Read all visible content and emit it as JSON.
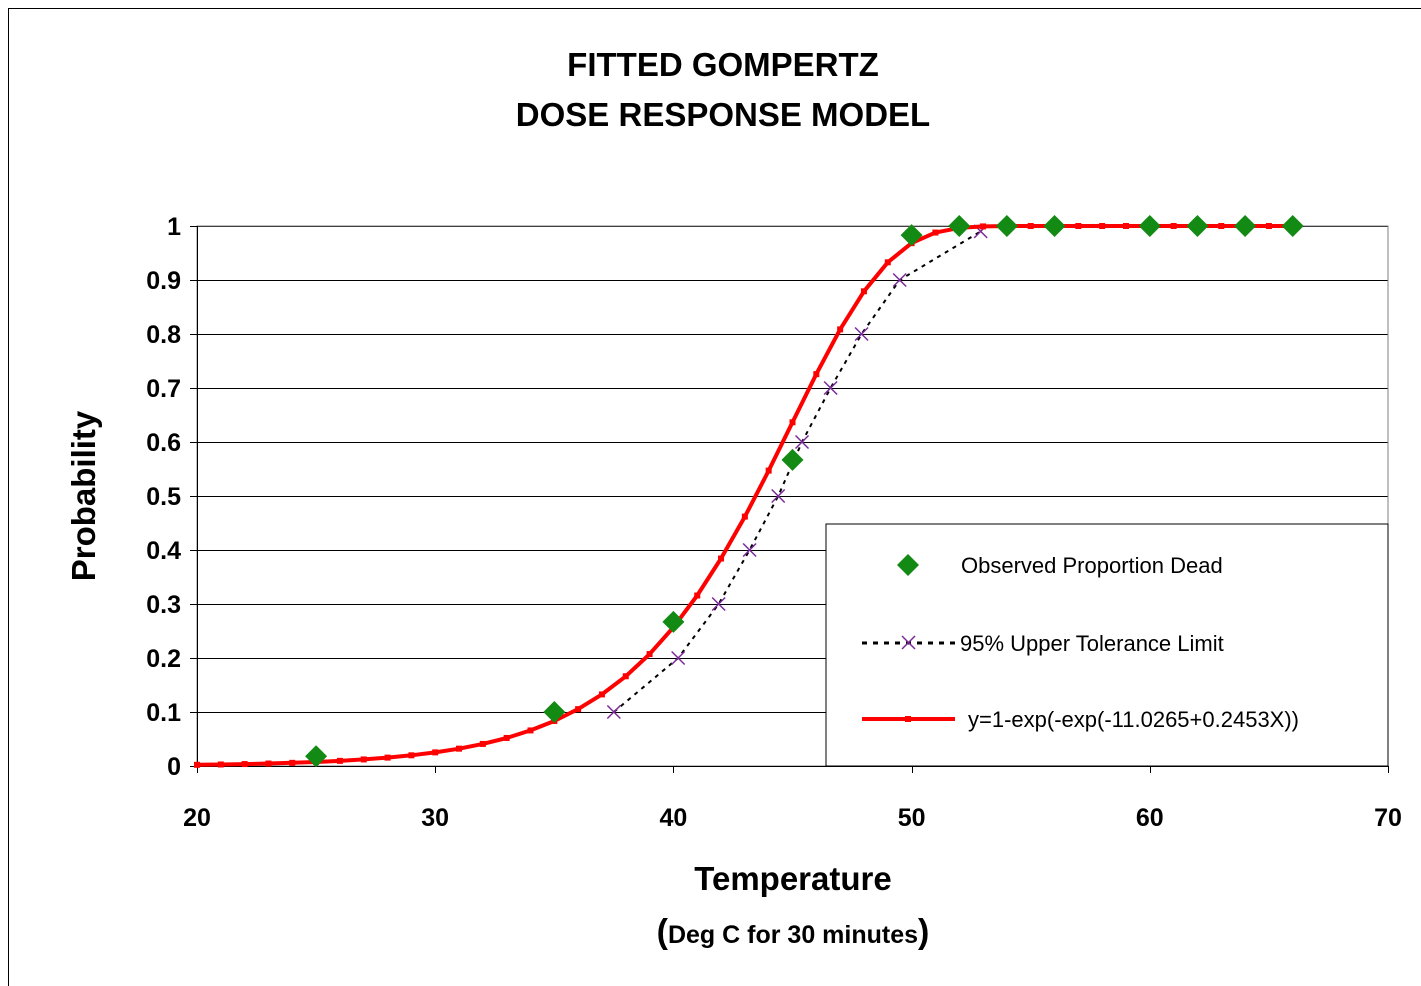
{
  "chart_data": {
    "type": "line",
    "title_lines": [
      "FITTED GOMPERTZ",
      "DOSE RESPONSE MODEL"
    ],
    "xlabel": "Temperature",
    "xlabel_sub_open": "(",
    "xlabel_sub": "Deg C for 30 minutes",
    "xlabel_sub_close": ")",
    "ylabel": "Probability",
    "xlim": [
      20,
      70
    ],
    "ylim": [
      0,
      1
    ],
    "x_ticks": [
      "20",
      "30",
      "40",
      "50",
      "60",
      "70"
    ],
    "y_ticks": [
      "0",
      "0.1",
      "0.2",
      "0.3",
      "0.4",
      "0.5",
      "0.6",
      "0.7",
      "0.8",
      "0.9",
      "1"
    ],
    "grid": "horizontal major gridlines",
    "legend_position": "lower-right",
    "series": [
      {
        "name": "Observed Proportion Dead",
        "style": "markers",
        "marker": "diamond",
        "color": "#138a13",
        "x": [
          25,
          35,
          40,
          45,
          50,
          52,
          54,
          56,
          60,
          62,
          64,
          66
        ],
        "y": [
          0.018,
          0.1,
          0.267,
          0.567,
          0.983,
          1.0,
          1.0,
          1.0,
          1.0,
          1.0,
          1.0,
          1.0
        ]
      },
      {
        "name": "95% Upper Tolerance Limit",
        "style": "dotted-line-markers",
        "marker": "x",
        "color": "#000000",
        "marker_color": "#7a2a9a",
        "x": [
          37.5,
          40.2,
          41.9,
          43.2,
          44.4,
          45.4,
          46.6,
          47.9,
          49.5,
          52.9
        ],
        "y": [
          0.1,
          0.2,
          0.3,
          0.4,
          0.5,
          0.6,
          0.7,
          0.8,
          0.9,
          0.99
        ]
      },
      {
        "name": "y=1-exp(-exp(-11.0265+0.2453X))",
        "style": "line-markers",
        "marker": "square",
        "color": "#ff0000",
        "equation": {
          "a": -11.0265,
          "b": 0.2453
        },
        "x_start": 20,
        "x_end": 66,
        "x_step": 1
      }
    ]
  }
}
